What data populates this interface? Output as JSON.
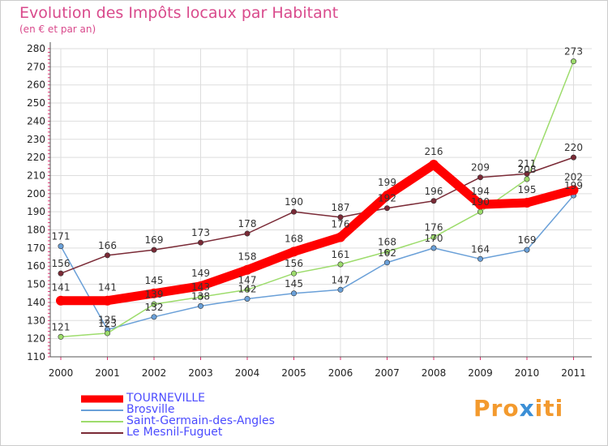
{
  "chart_data": {
    "type": "line",
    "title": "Evolution des Impôts locaux par Habitant",
    "subtitle": "(en € et par an)",
    "xlabel": "",
    "ylabel": "",
    "x": [
      "2000",
      "2001",
      "2002",
      "2003",
      "2004",
      "2005",
      "2006",
      "2007",
      "2008",
      "2009",
      "2010",
      "2011"
    ],
    "ylim": [
      110,
      280
    ],
    "yticks": [
      110,
      120,
      130,
      140,
      150,
      160,
      170,
      180,
      190,
      200,
      210,
      220,
      230,
      240,
      250,
      260,
      270,
      280
    ],
    "grid": true,
    "series": [
      {
        "name": "TOURNEVILLE",
        "color": "#ff0000",
        "values": [
          141,
          141,
          145,
          149,
          158,
          168,
          176,
          199,
          216,
          194,
          195,
          202
        ]
      },
      {
        "name": "Brosville",
        "color": "#6aa0d8",
        "values": [
          171,
          125,
          132,
          138,
          142,
          145,
          147,
          162,
          170,
          164,
          169,
          199
        ]
      },
      {
        "name": "Saint-Germain-des-Angles",
        "color": "#9ddc6c",
        "values": [
          121,
          123,
          139,
          143,
          147,
          156,
          161,
          168,
          176,
          190,
          208,
          273
        ]
      },
      {
        "name": "Le Mesnil-Fuguet",
        "color": "#7a2a36",
        "values": [
          156,
          166,
          169,
          173,
          178,
          190,
          187,
          192,
          196,
          209,
          211,
          220
        ]
      }
    ]
  },
  "logo": {
    "part1": "Pro",
    "part2": "x",
    "part3": "iti"
  }
}
